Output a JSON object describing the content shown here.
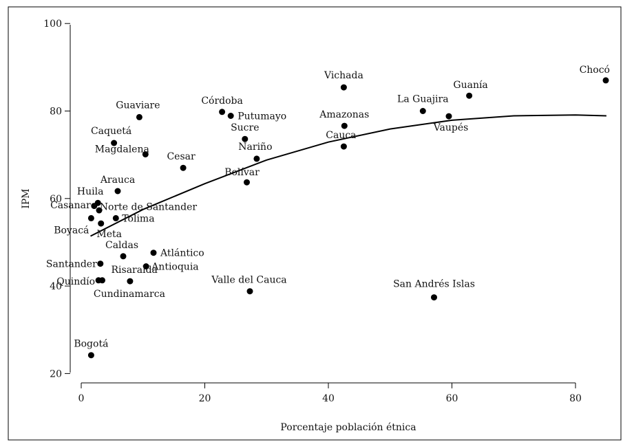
{
  "chart_data": {
    "type": "scatter",
    "title": "",
    "xlabel": "Porcentaje población étnica",
    "ylabel": "IPM",
    "xlim": [
      -1,
      86
    ],
    "ylim": [
      18,
      102
    ],
    "xticks": [
      "0",
      "20",
      "40",
      "60",
      "80"
    ],
    "xtick_values": [
      0,
      20,
      40,
      60,
      80
    ],
    "yticks": [
      "20",
      "40",
      "60",
      "80",
      "100"
    ],
    "ytick_values": [
      20,
      40,
      60,
      80,
      100
    ],
    "grid": false,
    "legend": "none",
    "marker_color": "#000000",
    "points": [
      {
        "label": "Chocó",
        "x": 84.9,
        "y": 87.0
      },
      {
        "label": "Vichada",
        "x": 42.5,
        "y": 85.4
      },
      {
        "label": "Guanía",
        "x": 62.8,
        "y": 83.5
      },
      {
        "label": "La Guajira",
        "x": 55.3,
        "y": 80.0
      },
      {
        "label": "Vaupés",
        "x": 59.5,
        "y": 78.8
      },
      {
        "label": "Amazonas",
        "x": 42.6,
        "y": 76.6
      },
      {
        "label": "Cauca",
        "x": 42.5,
        "y": 71.9
      },
      {
        "label": "Córdoba",
        "x": 22.8,
        "y": 79.8
      },
      {
        "label": "Putumayo",
        "x": 24.2,
        "y": 78.9
      },
      {
        "label": "Sucre",
        "x": 26.5,
        "y": 73.6
      },
      {
        "label": "Nariño",
        "x": 28.4,
        "y": 69.1
      },
      {
        "label": "Bolívar",
        "x": 26.8,
        "y": 63.7
      },
      {
        "label": "Guaviare",
        "x": 9.4,
        "y": 78.6
      },
      {
        "label": "Caquetá",
        "x": 5.3,
        "y": 72.7
      },
      {
        "label": "Magdalena",
        "x": 10.4,
        "y": 70.1
      },
      {
        "label": "Cesar",
        "x": 16.5,
        "y": 67.0
      },
      {
        "label": "Arauca",
        "x": 5.9,
        "y": 61.7
      },
      {
        "label": "Huila",
        "x": 2.7,
        "y": 59.0
      },
      {
        "label": "Norte de Santander",
        "x": 2.1,
        "y": 58.3
      },
      {
        "label": "Casanare",
        "x": 2.9,
        "y": 57.3
      },
      {
        "label": "Boyacá",
        "x": 1.6,
        "y": 55.5
      },
      {
        "label": "Tolima",
        "x": 5.6,
        "y": 55.5
      },
      {
        "label": "Meta",
        "x": 3.2,
        "y": 54.3
      },
      {
        "label": "Caldas",
        "x": 6.8,
        "y": 46.8
      },
      {
        "label": "Atlántico",
        "x": 11.7,
        "y": 47.6
      },
      {
        "label": "Antioquia",
        "x": 10.5,
        "y": 44.5
      },
      {
        "label": "Santander",
        "x": 3.1,
        "y": 45.1
      },
      {
        "label": "Risaralda",
        "x": 3.4,
        "y": 41.3
      },
      {
        "label": "Quindío",
        "x": 2.8,
        "y": 41.3
      },
      {
        "label": "Cundinamarca",
        "x": 7.9,
        "y": 41.1
      },
      {
        "label": "Valle del Cauca",
        "x": 27.3,
        "y": 38.8
      },
      {
        "label": "San Andrés Islas",
        "x": 57.1,
        "y": 37.4
      },
      {
        "label": "Bogotá",
        "x": 1.6,
        "y": 24.2
      }
    ],
    "fit_line": {
      "x": [
        1.5,
        10,
        20,
        30,
        40,
        50,
        60,
        70,
        80,
        85
      ],
      "y": [
        51.4,
        57.5,
        63.4,
        68.8,
        72.9,
        75.9,
        77.9,
        78.9,
        79.1,
        78.9
      ]
    }
  }
}
